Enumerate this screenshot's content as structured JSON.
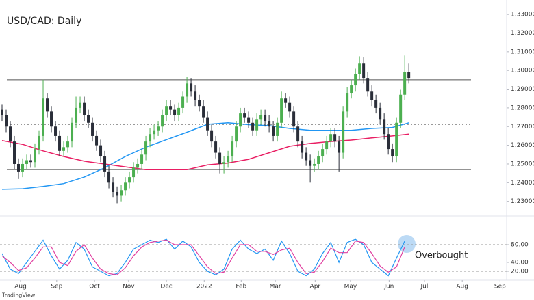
{
  "chart_data": {
    "type": "candlestick",
    "title": "USD/CAD: Daily",
    "open": [
      1.279,
      1.276,
      1.27,
      1.262,
      1.25,
      1.246,
      1.25,
      1.252,
      1.251,
      1.258,
      1.265,
      1.285,
      1.278,
      1.27,
      1.265,
      1.257,
      1.259,
      1.262,
      1.272,
      1.28,
      1.283,
      1.276,
      1.272,
      1.265,
      1.26,
      1.254,
      1.246,
      1.24,
      1.235,
      1.233,
      1.236,
      1.24,
      1.243,
      1.248,
      1.25,
      1.255,
      1.262,
      1.266,
      1.268,
      1.27,
      1.276,
      1.281,
      1.279,
      1.276,
      1.28,
      1.286,
      1.293,
      1.289,
      1.284,
      1.281,
      1.275,
      1.268,
      1.262,
      1.256,
      1.25,
      1.251,
      1.254,
      1.262,
      1.27,
      1.277,
      1.275,
      1.272,
      1.268,
      1.274,
      1.276,
      1.273,
      1.27,
      1.265,
      1.272,
      1.285,
      1.283,
      1.278,
      1.27,
      1.262,
      1.256,
      1.252,
      1.249,
      1.25,
      1.254,
      1.258,
      1.262,
      1.266,
      1.262,
      1.256,
      1.278,
      1.288,
      1.292,
      1.298,
      1.304,
      1.296,
      1.289,
      1.284,
      1.28,
      1.274,
      1.266,
      1.258,
      1.254,
      1.272,
      1.287,
      1.299
    ],
    "high": [
      1.282,
      1.279,
      1.273,
      1.265,
      1.253,
      1.253,
      1.255,
      1.255,
      1.261,
      1.268,
      1.295,
      1.288,
      1.281,
      1.273,
      1.268,
      1.262,
      1.265,
      1.275,
      1.286,
      1.286,
      1.286,
      1.279,
      1.275,
      1.268,
      1.263,
      1.257,
      1.249,
      1.243,
      1.238,
      1.239,
      1.243,
      1.246,
      1.251,
      1.253,
      1.258,
      1.265,
      1.269,
      1.271,
      1.273,
      1.279,
      1.284,
      1.284,
      1.282,
      1.283,
      1.289,
      1.2965,
      1.296,
      1.292,
      1.287,
      1.284,
      1.278,
      1.271,
      1.265,
      1.259,
      1.254,
      1.257,
      1.265,
      1.273,
      1.28,
      1.28,
      1.278,
      1.275,
      1.277,
      1.279,
      1.279,
      1.276,
      1.273,
      1.275,
      1.289,
      1.288,
      1.286,
      1.281,
      1.273,
      1.265,
      1.259,
      1.255,
      1.253,
      1.257,
      1.261,
      1.265,
      1.269,
      1.269,
      1.265,
      1.281,
      1.291,
      1.295,
      1.301,
      1.3076,
      1.307,
      1.299,
      1.292,
      1.287,
      1.283,
      1.277,
      1.269,
      1.261,
      1.275,
      1.29,
      1.308,
      1.304
    ],
    "low": [
      1.273,
      1.267,
      1.259,
      1.247,
      1.242,
      1.243,
      1.247,
      1.248,
      1.248,
      1.255,
      1.262,
      1.275,
      1.267,
      1.262,
      1.254,
      1.254,
      1.256,
      1.259,
      1.269,
      1.277,
      1.273,
      1.269,
      1.262,
      1.257,
      1.251,
      1.243,
      1.237,
      1.232,
      1.229,
      1.23,
      1.233,
      1.237,
      1.24,
      1.245,
      1.247,
      1.252,
      1.259,
      1.263,
      1.265,
      1.267,
      1.273,
      1.276,
      1.273,
      1.273,
      1.277,
      1.283,
      1.286,
      1.281,
      1.278,
      1.272,
      1.265,
      1.259,
      1.253,
      1.245,
      1.245,
      1.248,
      1.251,
      1.259,
      1.267,
      1.272,
      1.269,
      1.265,
      1.265,
      1.271,
      1.27,
      1.267,
      1.262,
      1.262,
      1.269,
      1.28,
      1.275,
      1.267,
      1.259,
      1.253,
      1.249,
      1.24,
      1.246,
      1.247,
      1.251,
      1.255,
      1.259,
      1.259,
      1.246,
      1.253,
      1.275,
      1.285,
      1.289,
      1.295,
      1.293,
      1.286,
      1.281,
      1.277,
      1.271,
      1.263,
      1.255,
      1.251,
      1.251,
      1.269,
      1.284,
      1.293
    ],
    "close": [
      1.276,
      1.27,
      1.262,
      1.25,
      1.246,
      1.25,
      1.252,
      1.251,
      1.258,
      1.265,
      1.285,
      1.278,
      1.27,
      1.265,
      1.257,
      1.259,
      1.262,
      1.272,
      1.28,
      1.283,
      1.276,
      1.272,
      1.265,
      1.26,
      1.254,
      1.246,
      1.24,
      1.235,
      1.233,
      1.236,
      1.24,
      1.243,
      1.248,
      1.25,
      1.255,
      1.262,
      1.266,
      1.268,
      1.27,
      1.276,
      1.281,
      1.279,
      1.276,
      1.28,
      1.286,
      1.293,
      1.289,
      1.284,
      1.281,
      1.275,
      1.268,
      1.262,
      1.256,
      1.25,
      1.251,
      1.254,
      1.262,
      1.27,
      1.277,
      1.275,
      1.272,
      1.268,
      1.274,
      1.276,
      1.273,
      1.27,
      1.265,
      1.272,
      1.285,
      1.283,
      1.278,
      1.27,
      1.262,
      1.256,
      1.252,
      1.249,
      1.25,
      1.254,
      1.258,
      1.262,
      1.266,
      1.262,
      1.256,
      1.278,
      1.288,
      1.292,
      1.298,
      1.304,
      1.296,
      1.289,
      1.284,
      1.28,
      1.274,
      1.266,
      1.258,
      1.254,
      1.272,
      1.287,
      1.299,
      1.296
    ],
    "up_color": "#4caf50",
    "down_color": "#2a2e39",
    "xlim": [
      -0.5,
      122.8
    ],
    "xticks": [
      {
        "value": 4.5,
        "label": "Aug"
      },
      {
        "value": 13.3,
        "label": "Sep"
      },
      {
        "value": 22.5,
        "label": "Oct"
      },
      {
        "value": 30.8,
        "label": "Nov"
      },
      {
        "value": 40,
        "label": "Dec"
      },
      {
        "value": 49.2,
        "label": "2022"
      },
      {
        "value": 58.2,
        "label": "Feb"
      },
      {
        "value": 66.5,
        "label": "Mar"
      },
      {
        "value": 76.2,
        "label": "Apr"
      },
      {
        "value": 84.8,
        "label": "May"
      },
      {
        "value": 94.2,
        "label": "Jun"
      },
      {
        "value": 102.8,
        "label": "Jul"
      },
      {
        "value": 112,
        "label": "Aug"
      },
      {
        "value": 121.2,
        "label": "Sep"
      }
    ],
    "ylim": [
      1.2233,
      1.3348
    ],
    "yticks": [
      {
        "value": 1.23,
        "label": "1.23000"
      },
      {
        "value": 1.24,
        "label": "1.24000"
      },
      {
        "value": 1.25,
        "label": "1.25000"
      },
      {
        "value": 1.26,
        "label": "1.26000"
      },
      {
        "value": 1.27,
        "label": "1.27000"
      },
      {
        "value": 1.28,
        "label": "1.28000"
      },
      {
        "value": 1.29,
        "label": "1.29000"
      },
      {
        "value": 1.3,
        "label": "1.30000"
      },
      {
        "value": 1.31,
        "label": "1.31000"
      },
      {
        "value": 1.32,
        "label": "1.32000"
      },
      {
        "value": 1.33,
        "label": "1.33000"
      }
    ],
    "levels": [
      {
        "value": 1.295,
        "style": "solid"
      },
      {
        "value": 1.271,
        "style": "dotted"
      },
      {
        "value": 1.247,
        "style": "solid"
      }
    ],
    "moving_averages": [
      {
        "color": "#2196f3",
        "x": [
          0,
          5,
          10,
          15,
          20,
          25,
          30,
          35,
          40,
          45,
          50,
          55,
          60,
          65,
          70,
          75,
          80,
          85,
          90,
          95,
          99
        ],
        "values": [
          1.2365,
          1.2368,
          1.238,
          1.2395,
          1.243,
          1.248,
          1.254,
          1.259,
          1.263,
          1.267,
          1.2712,
          1.272,
          1.271,
          1.2705,
          1.269,
          1.268,
          1.268,
          1.268,
          1.269,
          1.2695,
          1.272
        ]
      },
      {
        "color": "#e91e63",
        "x": [
          0,
          5,
          10,
          15,
          20,
          25,
          30,
          35,
          40,
          45,
          50,
          55,
          60,
          65,
          70,
          75,
          80,
          85,
          90,
          95,
          99
        ],
        "values": [
          1.2625,
          1.2605,
          1.257,
          1.254,
          1.2515,
          1.25,
          1.2485,
          1.247,
          1.247,
          1.247,
          1.2495,
          1.2505,
          1.2525,
          1.256,
          1.2595,
          1.261,
          1.262,
          1.2628,
          1.264,
          1.265,
          1.266
        ]
      }
    ],
    "annotation": "Overbought",
    "stochastic": {
      "type": "line",
      "ylim": [
        0,
        100
      ],
      "yticks": [
        {
          "value": 80,
          "label": "80.00"
        },
        {
          "value": 40,
          "label": "40.00"
        },
        {
          "value": 20,
          "label": "20.00"
        }
      ],
      "levels": [
        80,
        20
      ],
      "x": [
        0,
        2,
        4,
        6,
        8,
        10,
        12,
        14,
        16,
        18,
        20,
        22,
        24,
        26,
        28,
        30,
        32,
        34,
        36,
        38,
        40,
        42,
        44,
        46,
        48,
        50,
        52,
        54,
        56,
        58,
        60,
        62,
        64,
        66,
        68,
        70,
        72,
        74,
        76,
        78,
        80,
        82,
        84,
        86,
        88,
        90,
        92,
        94,
        96,
        98
      ],
      "series": [
        {
          "color": "#2196f3",
          "values": [
            60,
            25,
            15,
            40,
            65,
            90,
            55,
            25,
            45,
            85,
            70,
            30,
            20,
            10,
            15,
            40,
            70,
            80,
            90,
            85,
            92,
            70,
            88,
            75,
            40,
            20,
            12,
            25,
            70,
            90,
            70,
            60,
            70,
            45,
            88,
            60,
            20,
            10,
            25,
            60,
            85,
            40,
            85,
            92,
            80,
            40,
            25,
            10,
            50,
            88
          ]
        },
        {
          "color": "#e040a0",
          "values": [
            55,
            40,
            22,
            28,
            50,
            75,
            75,
            40,
            33,
            65,
            80,
            50,
            25,
            15,
            12,
            28,
            55,
            75,
            85,
            88,
            90,
            80,
            80,
            80,
            55,
            30,
            15,
            18,
            50,
            80,
            80,
            65,
            65,
            58,
            68,
            72,
            40,
            15,
            18,
            42,
            72,
            62,
            62,
            88,
            85,
            60,
            32,
            18,
            30,
            75
          ]
        }
      ]
    }
  },
  "footer": {
    "logo": "TradingView"
  }
}
